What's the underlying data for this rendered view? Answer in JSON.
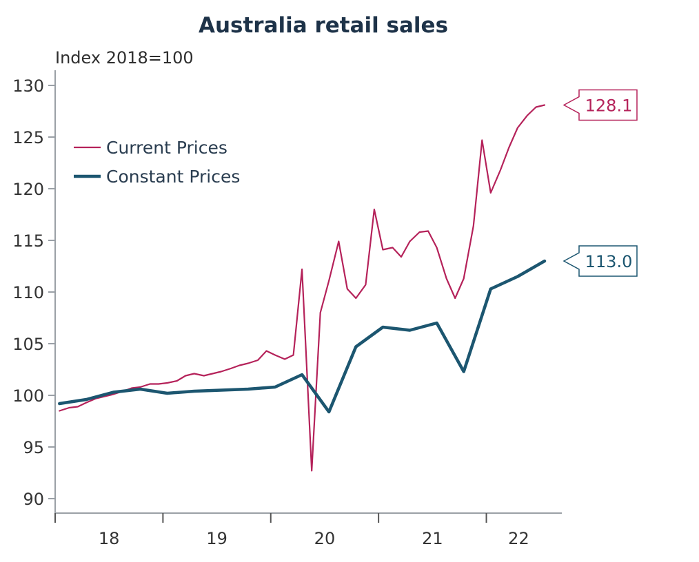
{
  "chart_data": {
    "type": "line",
    "title": "Australia retail sales",
    "ylabel": "Index 2018=100",
    "ylim": [
      90,
      130
    ],
    "yticks": [
      130,
      125,
      120,
      115,
      110,
      105,
      100,
      95,
      90
    ],
    "xlim": [
      2018.0,
      2022.7
    ],
    "xticks": [
      {
        "label": "18",
        "x": 2018.5
      },
      {
        "label": "19",
        "x": 2019.5
      },
      {
        "label": "20",
        "x": 2020.5
      },
      {
        "label": "21",
        "x": 2021.5
      },
      {
        "label": "22",
        "x": 2022.3
      }
    ],
    "legend_position": "top-left",
    "grid": false,
    "series": [
      {
        "name": "Current Prices",
        "color": "#b5225a",
        "end_label": "128.1",
        "points": [
          [
            2018.04,
            98.5
          ],
          [
            2018.13,
            98.8
          ],
          [
            2018.21,
            98.9
          ],
          [
            2018.29,
            99.3
          ],
          [
            2018.38,
            99.7
          ],
          [
            2018.46,
            99.9
          ],
          [
            2018.54,
            100.1
          ],
          [
            2018.63,
            100.4
          ],
          [
            2018.71,
            100.7
          ],
          [
            2018.79,
            100.8
          ],
          [
            2018.88,
            101.1
          ],
          [
            2018.96,
            101.1
          ],
          [
            2019.04,
            101.2
          ],
          [
            2019.13,
            101.4
          ],
          [
            2019.21,
            101.9
          ],
          [
            2019.29,
            102.1
          ],
          [
            2019.38,
            101.9
          ],
          [
            2019.46,
            102.1
          ],
          [
            2019.54,
            102.3
          ],
          [
            2019.63,
            102.6
          ],
          [
            2019.71,
            102.9
          ],
          [
            2019.79,
            103.1
          ],
          [
            2019.88,
            103.4
          ],
          [
            2019.96,
            104.3
          ],
          [
            2020.04,
            103.9
          ],
          [
            2020.13,
            103.5
          ],
          [
            2020.21,
            103.9
          ],
          [
            2020.29,
            112.2
          ],
          [
            2020.38,
            92.7
          ],
          [
            2020.46,
            108.0
          ],
          [
            2020.54,
            111.1
          ],
          [
            2020.63,
            114.9
          ],
          [
            2020.71,
            110.3
          ],
          [
            2020.79,
            109.4
          ],
          [
            2020.88,
            110.7
          ],
          [
            2020.96,
            118.0
          ],
          [
            2021.04,
            114.1
          ],
          [
            2021.13,
            114.3
          ],
          [
            2021.21,
            113.4
          ],
          [
            2021.29,
            114.9
          ],
          [
            2021.38,
            115.8
          ],
          [
            2021.46,
            115.9
          ],
          [
            2021.54,
            114.3
          ],
          [
            2021.63,
            111.3
          ],
          [
            2021.71,
            109.4
          ],
          [
            2021.79,
            111.3
          ],
          [
            2021.88,
            116.4
          ],
          [
            2021.96,
            124.7
          ],
          [
            2022.04,
            119.6
          ],
          [
            2022.13,
            121.8
          ],
          [
            2022.21,
            124.0
          ],
          [
            2022.29,
            125.9
          ],
          [
            2022.38,
            127.1
          ],
          [
            2022.46,
            127.9
          ],
          [
            2022.54,
            128.1
          ]
        ]
      },
      {
        "name": "Constant Prices",
        "color": "#1c5670",
        "end_label": "113.0",
        "points": [
          [
            2018.04,
            99.2
          ],
          [
            2018.29,
            99.6
          ],
          [
            2018.54,
            100.3
          ],
          [
            2018.79,
            100.6
          ],
          [
            2019.04,
            100.2
          ],
          [
            2019.29,
            100.4
          ],
          [
            2019.54,
            100.5
          ],
          [
            2019.79,
            100.6
          ],
          [
            2020.04,
            100.8
          ],
          [
            2020.29,
            102.0
          ],
          [
            2020.54,
            98.4
          ],
          [
            2020.79,
            104.7
          ],
          [
            2021.04,
            106.6
          ],
          [
            2021.29,
            106.3
          ],
          [
            2021.54,
            107.0
          ],
          [
            2021.79,
            102.3
          ],
          [
            2022.04,
            110.3
          ],
          [
            2022.29,
            111.5
          ],
          [
            2022.54,
            113.0
          ]
        ]
      }
    ]
  }
}
